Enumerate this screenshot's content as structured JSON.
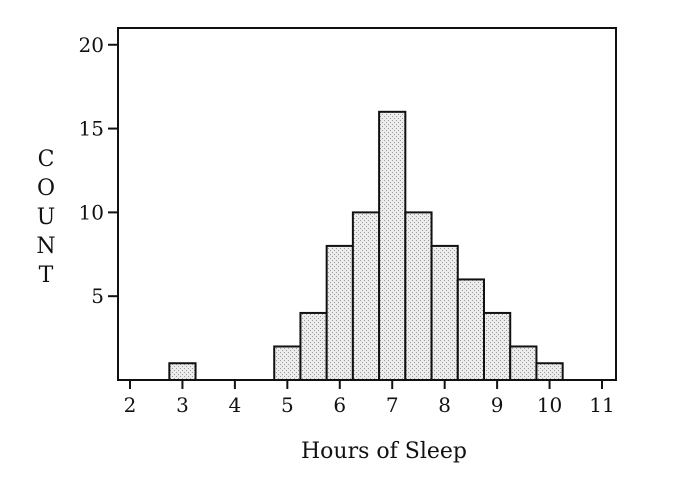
{
  "chart_data": {
    "type": "histogram",
    "xlabel": "Hours of Sleep",
    "ylabel": "COUNT",
    "xlim": [
      2,
      11
    ],
    "ylim": [
      0,
      21
    ],
    "x_ticks": [
      2,
      3,
      4,
      5,
      6,
      7,
      8,
      9,
      10,
      11
    ],
    "y_ticks": [
      5,
      10,
      15,
      20
    ],
    "grid": false,
    "bin_width": 0.5,
    "bins": [
      {
        "x0": 2.75,
        "x1": 3.25,
        "count": 1
      },
      {
        "x0": 4.75,
        "x1": 5.25,
        "count": 2
      },
      {
        "x0": 5.25,
        "x1": 5.75,
        "count": 4
      },
      {
        "x0": 5.75,
        "x1": 6.25,
        "count": 8
      },
      {
        "x0": 6.25,
        "x1": 6.75,
        "count": 10
      },
      {
        "x0": 6.75,
        "x1": 7.25,
        "count": 16
      },
      {
        "x0": 7.25,
        "x1": 7.75,
        "count": 10
      },
      {
        "x0": 7.75,
        "x1": 8.25,
        "count": 8
      },
      {
        "x0": 8.25,
        "x1": 8.75,
        "count": 6
      },
      {
        "x0": 8.75,
        "x1": 9.25,
        "count": 4
      },
      {
        "x0": 9.25,
        "x1": 9.75,
        "count": 2
      },
      {
        "x0": 9.75,
        "x1": 10.25,
        "count": 1
      }
    ],
    "colors": {
      "bar_fill": "#e6e6e6",
      "bar_stroke": "#111111",
      "axis": "#111111"
    }
  }
}
